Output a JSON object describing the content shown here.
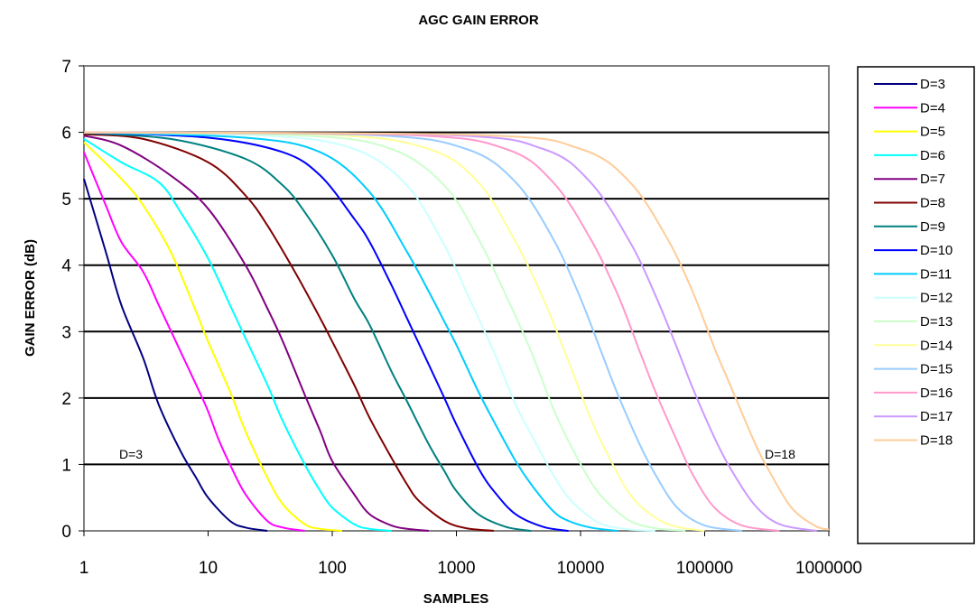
{
  "chart_data": {
    "type": "line",
    "title": "AGC GAIN ERROR",
    "xlabel": "SAMPLES",
    "ylabel": "GAIN ERROR (dB)",
    "x_scale": "log",
    "xlim": [
      1,
      1000000
    ],
    "ylim": [
      0,
      7
    ],
    "x_ticks": [
      "1",
      "10",
      "100",
      "1000",
      "10000",
      "100000",
      "1000000"
    ],
    "y_ticks": [
      "0",
      "1",
      "2",
      "3",
      "4",
      "5",
      "6",
      "7"
    ],
    "grid": "horizontal",
    "legend_position": "right",
    "annotations": [
      "D=3",
      "D=18"
    ],
    "series": [
      {
        "name": "D=3",
        "color": "#000080",
        "x": [
          1,
          1.5,
          2,
          3,
          4,
          6,
          8,
          10,
          15,
          20,
          30
        ],
        "y": [
          5.3,
          4.2,
          3.4,
          2.6,
          1.9,
          1.2,
          0.8,
          0.5,
          0.15,
          0.05,
          0
        ]
      },
      {
        "name": "D=4",
        "color": "#ff00ff",
        "x": [
          1,
          1.5,
          2,
          3,
          4,
          6,
          8,
          10,
          12,
          15,
          20,
          30,
          40,
          60
        ],
        "y": [
          5.7,
          4.9,
          4.35,
          3.9,
          3.4,
          2.7,
          2.2,
          1.8,
          1.4,
          1.0,
          0.55,
          0.15,
          0.05,
          0
        ]
      },
      {
        "name": "D=5",
        "color": "#ffff00",
        "x": [
          1,
          2,
          3,
          5,
          8,
          10,
          15,
          20,
          30,
          40,
          60,
          80,
          120
        ],
        "y": [
          5.85,
          5.3,
          4.9,
          4.2,
          3.3,
          2.85,
          2.1,
          1.5,
          0.8,
          0.4,
          0.1,
          0.03,
          0
        ]
      },
      {
        "name": "D=6",
        "color": "#00ffff",
        "x": [
          1,
          2,
          4,
          6,
          10,
          15,
          20,
          30,
          40,
          60,
          80,
          100,
          150,
          200,
          300
        ],
        "y": [
          5.9,
          5.55,
          5.25,
          4.8,
          4.1,
          3.4,
          2.9,
          2.2,
          1.65,
          1.0,
          0.6,
          0.35,
          0.1,
          0.03,
          0
        ]
      },
      {
        "name": "D=7",
        "color": "#800080",
        "x": [
          1,
          2,
          5,
          10,
          20,
          30,
          40,
          60,
          80,
          100,
          150,
          200,
          300,
          400,
          600
        ],
        "y": [
          5.95,
          5.8,
          5.35,
          4.85,
          4.0,
          3.35,
          2.85,
          2.05,
          1.5,
          1.05,
          0.55,
          0.25,
          0.08,
          0.03,
          0
        ]
      },
      {
        "name": "D=8",
        "color": "#800000",
        "x": [
          1,
          3,
          10,
          20,
          30,
          50,
          80,
          100,
          150,
          200,
          300,
          400,
          500,
          800,
          1200,
          2000
        ],
        "y": [
          5.97,
          5.9,
          5.55,
          5.05,
          4.6,
          3.9,
          3.2,
          2.85,
          2.2,
          1.7,
          1.1,
          0.7,
          0.45,
          0.15,
          0.04,
          0
        ]
      },
      {
        "name": "D=9",
        "color": "#008080",
        "x": [
          1,
          5,
          20,
          40,
          60,
          100,
          150,
          200,
          300,
          400,
          600,
          800,
          1000,
          1500,
          2500,
          4000
        ],
        "y": [
          5.99,
          5.9,
          5.6,
          5.2,
          4.8,
          4.15,
          3.5,
          3.1,
          2.4,
          1.95,
          1.3,
          0.9,
          0.6,
          0.25,
          0.06,
          0
        ]
      },
      {
        "name": "D=10",
        "color": "#0000ff",
        "x": [
          1,
          10,
          40,
          80,
          150,
          200,
          300,
          400,
          600,
          800,
          1000,
          1500,
          2000,
          3000,
          5000,
          8000
        ],
        "y": [
          6.0,
          5.92,
          5.7,
          5.35,
          4.7,
          4.35,
          3.7,
          3.2,
          2.5,
          2.0,
          1.6,
          0.95,
          0.6,
          0.25,
          0.06,
          0
        ]
      },
      {
        "name": "D=11",
        "color": "#00ccff",
        "x": [
          1,
          20,
          80,
          200,
          400,
          600,
          800,
          1000,
          1500,
          2000,
          3000,
          4000,
          6000,
          8000,
          12000,
          20000
        ],
        "y": [
          6.0,
          5.92,
          5.7,
          5.1,
          4.2,
          3.6,
          3.15,
          2.8,
          2.1,
          1.65,
          1.05,
          0.7,
          0.3,
          0.15,
          0.05,
          0
        ]
      },
      {
        "name": "D=12",
        "color": "#ccffff",
        "x": [
          1,
          30,
          150,
          400,
          800,
          1200,
          2000,
          3000,
          4000,
          6000,
          8000,
          12000,
          16000,
          25000,
          40000
        ],
        "y": [
          6.0,
          5.95,
          5.75,
          5.2,
          4.3,
          3.6,
          2.7,
          1.9,
          1.45,
          0.85,
          0.5,
          0.2,
          0.08,
          0.02,
          0
        ]
      },
      {
        "name": "D=13",
        "color": "#ccffcc",
        "x": [
          1,
          60,
          300,
          800,
          1500,
          2500,
          4000,
          6000,
          8000,
          12000,
          16000,
          25000,
          40000,
          70000
        ],
        "y": [
          6.0,
          5.95,
          5.75,
          5.2,
          4.4,
          3.55,
          2.7,
          1.85,
          1.35,
          0.75,
          0.45,
          0.15,
          0.04,
          0
        ]
      },
      {
        "name": "D=14",
        "color": "#ffff99",
        "x": [
          1,
          100,
          600,
          1500,
          3000,
          5000,
          8000,
          12000,
          16000,
          25000,
          40000,
          60000,
          100000
        ],
        "y": [
          6.0,
          5.96,
          5.75,
          5.25,
          4.35,
          3.5,
          2.55,
          1.7,
          1.2,
          0.55,
          0.2,
          0.06,
          0
        ]
      },
      {
        "name": "D=15",
        "color": "#99ccff",
        "x": [
          1,
          200,
          1200,
          3000,
          6000,
          10000,
          15000,
          20000,
          30000,
          40000,
          60000,
          100000,
          200000
        ],
        "y": [
          6.0,
          5.96,
          5.75,
          5.25,
          4.4,
          3.5,
          2.65,
          2.05,
          1.3,
          0.85,
          0.35,
          0.08,
          0
        ]
      },
      {
        "name": "D=16",
        "color": "#ff99cc",
        "x": [
          1,
          400,
          2500,
          6000,
          12000,
          20000,
          30000,
          40000,
          60000,
          80000,
          120000,
          200000,
          400000
        ],
        "y": [
          6.0,
          5.96,
          5.75,
          5.25,
          4.4,
          3.55,
          2.7,
          2.1,
          1.35,
          0.85,
          0.35,
          0.08,
          0
        ]
      },
      {
        "name": "D=17",
        "color": "#cc99ff",
        "x": [
          1,
          800,
          5000,
          12000,
          25000,
          40000,
          60000,
          80000,
          120000,
          160000,
          250000,
          400000,
          800000
        ],
        "y": [
          6.0,
          5.96,
          5.75,
          5.25,
          4.35,
          3.55,
          2.75,
          2.15,
          1.4,
          0.95,
          0.4,
          0.1,
          0
        ]
      },
      {
        "name": "D=18",
        "color": "#ffcc99",
        "x": [
          1,
          1500,
          10000,
          25000,
          50000,
          80000,
          120000,
          160000,
          250000,
          320000,
          500000,
          800000,
          1000000
        ],
        "y": [
          6.0,
          5.96,
          5.75,
          5.25,
          4.4,
          3.6,
          2.75,
          2.2,
          1.35,
          0.95,
          0.35,
          0.06,
          0.02
        ]
      }
    ]
  }
}
